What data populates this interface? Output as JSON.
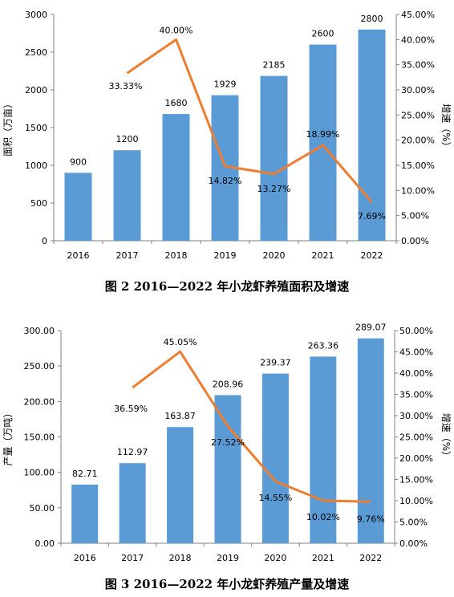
{
  "chart_data": [
    {
      "type": "bar",
      "title": "图 2 2016—2022 年小龙虾养殖面积及增速",
      "categories": [
        "2016",
        "2017",
        "2018",
        "2019",
        "2020",
        "2021",
        "2022"
      ],
      "series": [
        {
          "name": "",
          "chart": "bar",
          "axis": "left",
          "values": [
            900,
            1200,
            1680,
            1929,
            2185,
            2600,
            2800
          ],
          "labels": [
            "900",
            "1200",
            "1680",
            "1929",
            "2185",
            "2600",
            "2800"
          ]
        },
        {
          "name": "",
          "chart": "line",
          "axis": "right",
          "values": [
            null,
            33.33,
            40.0,
            14.82,
            13.27,
            18.99,
            7.69
          ],
          "labels": [
            "",
            "33.33%",
            "40.00%",
            "14.82%",
            "13.27%",
            "18.99%",
            "7.69%"
          ]
        }
      ],
      "ylabel": "面积（万亩）",
      "y2label": "增速（%）",
      "ylim": [
        0,
        3000
      ],
      "y2lim": [
        0,
        45
      ],
      "yticks": [
        "0",
        "500",
        "1000",
        "1500",
        "2000",
        "2500",
        "3000"
      ],
      "y2ticks": [
        "0.00%",
        "5.00%",
        "10.00%",
        "15.00%",
        "20.00%",
        "25.00%",
        "30.00%",
        "35.00%",
        "40.00%",
        "45.00%"
      ],
      "grid": false,
      "colors": {
        "bar": "#5B9BD5",
        "line": "#ED7D31"
      }
    },
    {
      "type": "bar",
      "title": "图 3 2016—2022 年小龙虾养殖产量及增速",
      "categories": [
        "2016",
        "2017",
        "2018",
        "2019",
        "2020",
        "2021",
        "2022"
      ],
      "series": [
        {
          "name": "",
          "chart": "bar",
          "axis": "left",
          "values": [
            82.71,
            112.97,
            163.87,
            208.96,
            239.37,
            263.36,
            289.07
          ],
          "labels": [
            "82.71",
            "112.97",
            "163.87",
            "208.96",
            "239.37",
            "263.36",
            "289.07"
          ]
        },
        {
          "name": "",
          "chart": "line",
          "axis": "right",
          "values": [
            null,
            36.59,
            45.05,
            27.52,
            14.55,
            10.02,
            9.76
          ],
          "labels": [
            "",
            "36.59%",
            "45.05%",
            "27.52%",
            "14.55%",
            "10.02%",
            "9.76%"
          ]
        }
      ],
      "ylabel": "产量（万吨）",
      "y2label": "增速（%）",
      "ylim": [
        0,
        300
      ],
      "y2lim": [
        0,
        50
      ],
      "yticks": [
        "0.00",
        "50.00",
        "100.00",
        "150.00",
        "200.00",
        "250.00",
        "300.00"
      ],
      "y2ticks": [
        "0.00%",
        "5.00%",
        "10.00%",
        "15.00%",
        "20.00%",
        "25.00%",
        "30.00%",
        "35.00%",
        "40.00%",
        "45.00%",
        "50.00%"
      ],
      "grid": false,
      "colors": {
        "bar": "#5B9BD5",
        "line": "#ED7D31"
      }
    }
  ]
}
